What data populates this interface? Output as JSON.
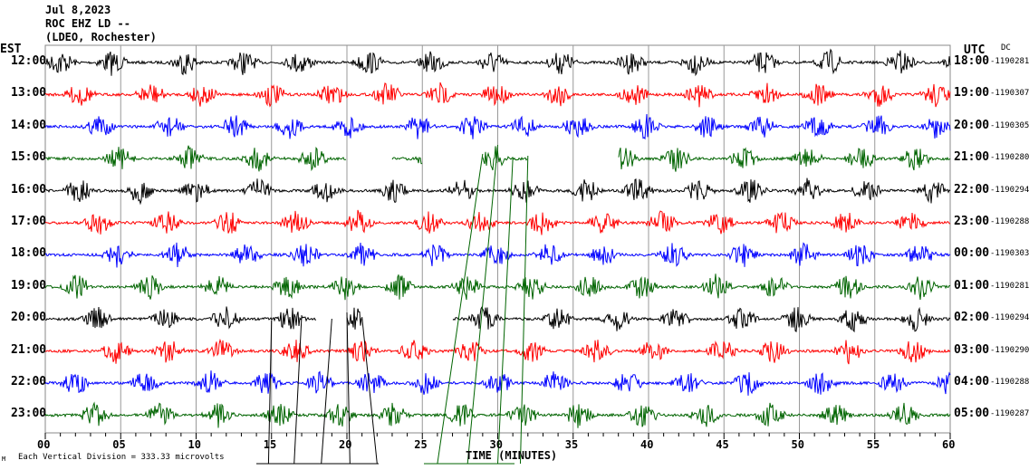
{
  "header": {
    "date": "Jul 8,2023",
    "station": "ROC EHZ LD --",
    "network": "(LDEO, Rochester)"
  },
  "left_axis_label": "EST",
  "right_axis_label": "UTC",
  "dc_label": "DC",
  "footer": {
    "scale_note": "Each Vertical Division =  333.33 microvolts",
    "corner_mark": "M"
  },
  "chart_data": {
    "type": "line",
    "title": "",
    "xlabel": "TIME (MINUTES)",
    "xlim": [
      0,
      60
    ],
    "x_ticks": [
      "00",
      "05",
      "10",
      "15",
      "20",
      "25",
      "30",
      "35",
      "40",
      "45",
      "50",
      "55",
      "60"
    ],
    "grid": true,
    "rows": [
      {
        "est": "12:00",
        "utc": "18:00",
        "dc": "-1190281",
        "color": "#000000",
        "gaps": []
      },
      {
        "est": "13:00",
        "utc": "19:00",
        "dc": "-1190307",
        "color": "#ff0000",
        "gaps": []
      },
      {
        "est": "14:00",
        "utc": "20:00",
        "dc": "-1190305",
        "color": "#0000ff",
        "gaps": []
      },
      {
        "est": "15:00",
        "utc": "21:00",
        "dc": "-1190280",
        "color": "#006400",
        "gaps": [
          [
            20,
            23
          ],
          [
            25,
            29
          ],
          [
            32,
            38
          ]
        ]
      },
      {
        "est": "16:00",
        "utc": "22:00",
        "dc": "-1190294",
        "color": "#000000",
        "gaps": []
      },
      {
        "est": "17:00",
        "utc": "23:00",
        "dc": "-1190288",
        "color": "#ff0000",
        "gaps": []
      },
      {
        "est": "18:00",
        "utc": "00:00",
        "dc": "-1190303",
        "color": "#0000ff",
        "gaps": []
      },
      {
        "est": "19:00",
        "utc": "01:00",
        "dc": "-1190281",
        "color": "#006400",
        "gaps": []
      },
      {
        "est": "20:00",
        "utc": "02:00",
        "dc": "-1190294",
        "color": "#000000",
        "gaps": [
          [
            18,
            20
          ],
          [
            21,
            27
          ]
        ]
      },
      {
        "est": "21:00",
        "utc": "03:00",
        "dc": "-1190290",
        "color": "#ff0000",
        "gaps": []
      },
      {
        "est": "22:00",
        "utc": "04:00",
        "dc": "-1190288",
        "color": "#0000ff",
        "gaps": []
      },
      {
        "est": "23:00",
        "utc": "05:00",
        "dc": "-1190287",
        "color": "#006400",
        "gaps": []
      }
    ]
  }
}
